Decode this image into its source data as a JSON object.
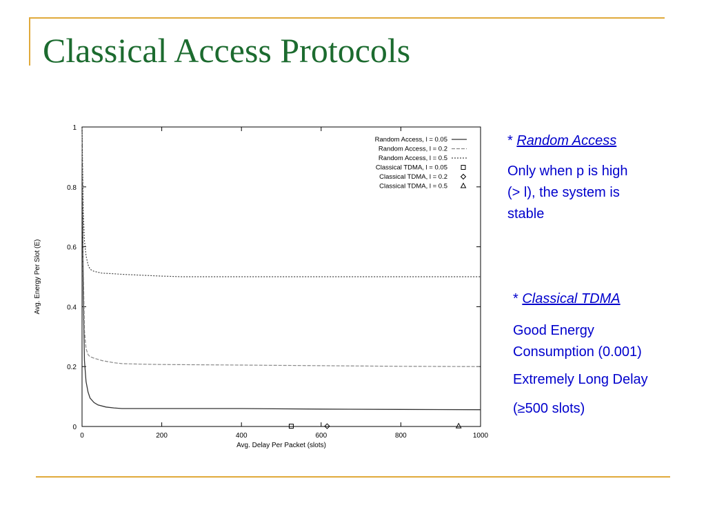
{
  "slide": {
    "title": "Classical Access Protocols"
  },
  "notes": {
    "random": {
      "bullet": "*",
      "heading": "Random Access",
      "lines": [
        "Only when p is high",
        "(> l), the system is",
        "stable"
      ]
    },
    "tdma": {
      "bullet": "*",
      "heading": "Classical TDMA",
      "lines": [
        "Good Energy",
        "Consumption (0.001)",
        "Extremely Long Delay",
        "(≥500 slots)"
      ]
    }
  },
  "chart_data": {
    "type": "line",
    "xlabel": "Avg. Delay Per Packet (slots)",
    "ylabel": "Avg. Energy Per Slot (E)",
    "xlim": [
      0,
      1000
    ],
    "ylim": [
      0,
      1
    ],
    "xticks": [
      "0",
      "200",
      "400",
      "600",
      "800",
      "1000"
    ],
    "yticks": [
      "0",
      "0.2",
      "0.4",
      "0.6",
      "0.8",
      "1"
    ],
    "legend_position": "top-right",
    "series": [
      {
        "name": "Random Access, l = 0.05",
        "style": "solid",
        "color": "#333333",
        "x": [
          0,
          3,
          6,
          10,
          15,
          20,
          30,
          40,
          60,
          80,
          100,
          150,
          200,
          400,
          600,
          800,
          1000
        ],
        "y": [
          1.0,
          0.45,
          0.22,
          0.15,
          0.115,
          0.095,
          0.08,
          0.072,
          0.065,
          0.062,
          0.06,
          0.06,
          0.06,
          0.06,
          0.058,
          0.057,
          0.056
        ]
      },
      {
        "name": "Random Access, l =  0.2",
        "style": "dashed",
        "color": "#888888",
        "x": [
          0,
          3,
          6,
          10,
          15,
          20,
          30,
          50,
          80,
          100,
          150,
          200,
          400,
          600,
          800,
          1000
        ],
        "y": [
          1.0,
          0.55,
          0.32,
          0.26,
          0.24,
          0.233,
          0.228,
          0.22,
          0.213,
          0.21,
          0.208,
          0.207,
          0.205,
          0.203,
          0.201,
          0.2
        ]
      },
      {
        "name": "Random Access, l =  0.5",
        "style": "dotted",
        "color": "#444444",
        "x": [
          0,
          3,
          6,
          10,
          15,
          20,
          30,
          50,
          80,
          100,
          150,
          200,
          250,
          400,
          600,
          800,
          1000
        ],
        "y": [
          1.0,
          0.72,
          0.62,
          0.57,
          0.54,
          0.525,
          0.518,
          0.512,
          0.51,
          0.508,
          0.505,
          0.502,
          0.5,
          0.5,
          0.5,
          0.5,
          0.5
        ]
      },
      {
        "name": "Classical TDMA, l = 0.05",
        "marker": "square",
        "x": [
          525
        ],
        "y": [
          0.001
        ]
      },
      {
        "name": "Classical TDMA, l =  0.2",
        "marker": "diamond",
        "x": [
          615
        ],
        "y": [
          0.001
        ]
      },
      {
        "name": "Classical TDMA, l =  0.5",
        "marker": "triangle",
        "x": [
          945
        ],
        "y": [
          0.001
        ]
      }
    ]
  }
}
